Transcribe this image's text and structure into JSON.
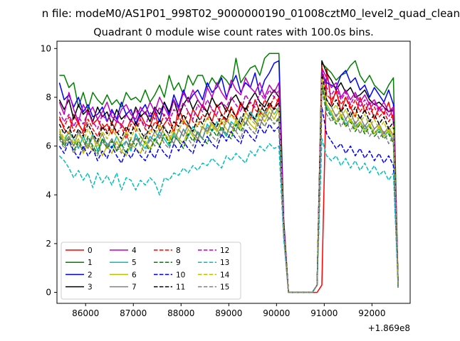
{
  "suptitle": "n file: modeM0/AS1P01_998T02_9000000190_01008cztM0_level2_quad_clean",
  "chart_data": {
    "type": "line",
    "title": "Quadrant 0 module wise count rates with 100.0s bins.",
    "xlabel": "",
    "ylabel": "",
    "x_offset_label": "+1.869e8",
    "xlim": [
      85400,
      92800
    ],
    "ylim": [
      -0.45,
      10.3
    ],
    "xticks": [
      86000,
      87000,
      88000,
      89000,
      90000,
      91000,
      92000
    ],
    "yticks": [
      0,
      2,
      4,
      6,
      8,
      10
    ],
    "grid": false,
    "legend": {
      "position": "lower-left",
      "columns": 4
    },
    "x_start": 85450,
    "x_step": 100,
    "series": [
      {
        "name": "0",
        "color": "#ff0000",
        "dash": "solid",
        "values": [
          7.2,
          6.7,
          6.5,
          7.3,
          6.9,
          6.6,
          7.5,
          6.9,
          7.1,
          6.7,
          6.9,
          6.5,
          7.0,
          6.9,
          6.6,
          7.1,
          6.8,
          7.3,
          6.9,
          6.8,
          7.4,
          6.6,
          6.9,
          7.2,
          6.5,
          7.6,
          7.0,
          6.8,
          7.5,
          7.2,
          7.7,
          7.4,
          7.0,
          7.7,
          7.3,
          7.0,
          7.6,
          7.2,
          7.8,
          7.4,
          7.1,
          7.9,
          7.4,
          7.2,
          7.7,
          7.5,
          8.0,
          2.5,
          0,
          0,
          0,
          0,
          0,
          0,
          0,
          0.3,
          9.2,
          7.7,
          8.3,
          7.4,
          8.0,
          7.6,
          7.2,
          8.0,
          7.4,
          7.8,
          7.1,
          7.6,
          7.3,
          7.8,
          7.0,
          0.3
        ]
      },
      {
        "name": "1",
        "color": "#008000",
        "dash": "solid",
        "values": [
          8.9,
          8.9,
          8.4,
          8.6,
          7.6,
          8.2,
          7.5,
          8.2,
          7.9,
          7.7,
          8.1,
          7.7,
          7.9,
          7.6,
          8.2,
          7.9,
          8.0,
          7.8,
          8.3,
          7.8,
          8.1,
          8.5,
          8.0,
          8.9,
          8.3,
          8.6,
          8.1,
          8.9,
          8.5,
          8.9,
          8.9,
          8.4,
          8.8,
          8.5,
          8.9,
          8.7,
          8.4,
          9.6,
          8.6,
          8.9,
          9.2,
          9.3,
          8.9,
          9.6,
          9.8,
          9.8,
          9.8,
          3.0,
          0,
          0,
          0,
          0,
          0,
          0,
          0.3,
          9.4,
          9.2,
          9.0,
          8.7,
          8.9,
          9.0,
          9.3,
          9.5,
          8.9,
          8.6,
          8.9,
          8.5,
          8.3,
          8.1,
          8.5,
          8.8,
          0.2
        ]
      },
      {
        "name": "2",
        "color": "#0000ff",
        "dash": "solid",
        "values": [
          8.6,
          7.9,
          8.1,
          7.6,
          8.0,
          7.4,
          7.7,
          7.2,
          7.3,
          7.6,
          7.0,
          7.5,
          7.1,
          7.8,
          7.3,
          7.5,
          6.9,
          7.4,
          7.7,
          7.2,
          7.5,
          7.0,
          7.8,
          7.3,
          8.1,
          7.6,
          8.3,
          7.8,
          8.1,
          8.3,
          7.9,
          8.6,
          8.2,
          8.4,
          8.8,
          8.0,
          8.5,
          8.9,
          8.2,
          8.6,
          8.4,
          9.0,
          8.1,
          8.7,
          9.0,
          9.4,
          9.5,
          3.0,
          0,
          0,
          0,
          0,
          0,
          0,
          0.3,
          9.0,
          8.6,
          8.5,
          8.4,
          8.9,
          9.1,
          8.6,
          8.8,
          8.3,
          8.5,
          8.0,
          8.4,
          8.1,
          7.8,
          8.3,
          7.7,
          0.2
        ]
      },
      {
        "name": "3",
        "color": "#000000",
        "dash": "solid",
        "values": [
          7.9,
          7.5,
          7.9,
          7.1,
          7.7,
          7.3,
          7.5,
          7.0,
          7.6,
          7.2,
          7.4,
          6.9,
          7.5,
          7.1,
          7.3,
          7.0,
          7.6,
          7.2,
          7.4,
          7.0,
          7.6,
          7.3,
          7.8,
          7.4,
          7.9,
          7.2,
          7.7,
          8.0,
          7.5,
          7.9,
          7.6,
          7.4,
          8.0,
          7.6,
          7.8,
          7.4,
          7.9,
          8.1,
          7.7,
          7.5,
          7.9,
          8.2,
          7.8,
          7.6,
          8.0,
          8.3,
          8.0,
          2.8,
          0,
          0,
          0,
          0,
          0,
          0,
          0.3,
          9.5,
          9.0,
          8.7,
          8.3,
          8.6,
          8.2,
          8.4,
          8.0,
          8.1,
          8.3,
          7.9,
          7.7,
          7.8,
          7.6,
          7.4,
          7.5,
          0.3
        ]
      },
      {
        "name": "4",
        "color": "#bf00bf",
        "dash": "solid",
        "values": [
          7.8,
          7.3,
          8.2,
          7.5,
          7.0,
          7.7,
          7.3,
          7.6,
          7.1,
          7.4,
          7.8,
          7.2,
          7.0,
          7.5,
          7.7,
          7.3,
          7.1,
          7.6,
          7.3,
          7.8,
          7.4,
          8.0,
          7.6,
          7.2,
          7.9,
          7.5,
          8.2,
          7.8,
          8.3,
          7.9,
          7.6,
          8.4,
          8.0,
          8.6,
          8.2,
          7.9,
          8.7,
          8.3,
          8.1,
          8.8,
          8.4,
          8.2,
          8.6,
          8.0,
          8.5,
          8.2,
          8.6,
          2.9,
          0,
          0,
          0,
          0,
          0,
          0,
          0.3,
          9.2,
          8.8,
          8.4,
          8.6,
          8.0,
          8.3,
          7.9,
          8.2,
          7.8,
          8.1,
          7.7,
          7.9,
          7.5,
          7.8,
          7.4,
          7.6,
          0.2
        ]
      },
      {
        "name": "5",
        "color": "#00bfbf",
        "dash": "solid",
        "values": [
          6.6,
          6.2,
          6.6,
          6.3,
          5.9,
          6.4,
          6.0,
          6.5,
          5.8,
          6.3,
          6.1,
          5.9,
          6.4,
          6.0,
          6.2,
          5.8,
          6.5,
          6.1,
          5.9,
          6.4,
          6.2,
          6.6,
          6.3,
          6.0,
          6.5,
          6.2,
          6.7,
          6.4,
          6.8,
          6.5,
          6.3,
          6.9,
          6.6,
          7.0,
          6.7,
          6.4,
          7.0,
          6.8,
          7.2,
          6.9,
          7.4,
          7.1,
          7.5,
          7.2,
          7.6,
          7.3,
          7.6,
          2.6,
          0,
          0,
          0,
          0,
          0,
          0,
          0.3,
          8.6,
          7.6,
          7.3,
          7.0,
          7.3,
          6.9,
          7.1,
          6.8,
          7.0,
          6.7,
          6.9,
          6.5,
          6.7,
          6.4,
          6.6,
          6.2,
          0.2
        ]
      },
      {
        "name": "6",
        "color": "#bfbf00",
        "dash": "solid",
        "values": [
          6.6,
          6.2,
          6.4,
          6.0,
          6.3,
          5.7,
          6.1,
          5.8,
          6.2,
          5.6,
          6.0,
          5.7,
          6.2,
          5.8,
          5.6,
          6.1,
          5.9,
          5.7,
          6.2,
          5.9,
          6.3,
          6.0,
          6.5,
          6.2,
          6.6,
          6.3,
          6.1,
          6.7,
          6.4,
          6.2,
          6.8,
          6.5,
          6.9,
          6.6,
          7.0,
          6.7,
          6.5,
          7.1,
          6.8,
          7.2,
          6.9,
          6.7,
          7.3,
          7.0,
          7.4,
          7.1,
          7.5,
          2.6,
          0,
          0,
          0,
          0,
          0,
          0,
          0.3,
          8.4,
          7.7,
          7.4,
          7.0,
          7.3,
          6.8,
          7.1,
          6.7,
          7.0,
          6.6,
          6.9,
          6.5,
          6.8,
          6.4,
          6.7,
          6.2,
          0.2
        ]
      },
      {
        "name": "7",
        "color": "#808080",
        "dash": "solid",
        "values": [
          6.5,
          6.1,
          6.4,
          6.0,
          6.6,
          6.2,
          5.9,
          6.4,
          6.1,
          6.5,
          6.0,
          6.3,
          5.8,
          6.2,
          6.5,
          6.0,
          6.3,
          6.1,
          6.5,
          6.2,
          6.6,
          6.3,
          6.8,
          6.4,
          6.1,
          6.7,
          6.4,
          6.9,
          6.5,
          6.3,
          6.8,
          6.6,
          7.0,
          6.7,
          6.4,
          7.1,
          6.8,
          6.6,
          7.2,
          6.9,
          7.3,
          7.0,
          6.8,
          7.4,
          7.1,
          7.6,
          7.4,
          2.6,
          0,
          0,
          0,
          0,
          0,
          0,
          0.3,
          8.7,
          7.9,
          7.6,
          7.2,
          7.5,
          7.1,
          7.4,
          6.9,
          7.2,
          6.8,
          7.1,
          6.7,
          6.9,
          6.5,
          6.8,
          6.4,
          0.2
        ]
      },
      {
        "name": "8",
        "color": "#ff0000",
        "dash": "dashed",
        "values": [
          7.1,
          6.8,
          7.2,
          6.6,
          7.0,
          6.5,
          7.1,
          6.7,
          6.4,
          6.9,
          6.6,
          7.0,
          6.5,
          6.8,
          6.3,
          6.9,
          6.6,
          7.1,
          6.7,
          6.5,
          7.0,
          6.8,
          7.3,
          6.9,
          6.6,
          7.2,
          6.9,
          7.4,
          7.0,
          6.8,
          7.3,
          7.1,
          7.5,
          7.2,
          6.9,
          7.6,
          7.3,
          7.1,
          7.7,
          7.4,
          7.8,
          7.5,
          7.3,
          7.9,
          7.6,
          8.0,
          7.8,
          2.7,
          0,
          0,
          0,
          0,
          0,
          0,
          0.3,
          9.3,
          8.1,
          7.9,
          8.2,
          7.7,
          8.0,
          7.5,
          7.9,
          7.4,
          7.7,
          7.3,
          7.6,
          7.2,
          7.4,
          7.0,
          7.3,
          0.2
        ]
      },
      {
        "name": "9",
        "color": "#008000",
        "dash": "dashed",
        "values": [
          6.4,
          6.0,
          6.3,
          5.8,
          6.2,
          5.9,
          6.4,
          6.0,
          5.7,
          6.3,
          5.9,
          6.2,
          5.8,
          6.1,
          5.7,
          6.3,
          6.0,
          6.4,
          6.1,
          5.8,
          6.3,
          6.0,
          6.5,
          6.1,
          6.4,
          6.2,
          5.9,
          6.5,
          6.2,
          6.6,
          6.3,
          6.1,
          6.7,
          6.4,
          6.8,
          6.5,
          6.3,
          6.9,
          6.6,
          7.0,
          6.7,
          6.5,
          7.1,
          6.8,
          7.2,
          6.9,
          7.1,
          2.5,
          0,
          0,
          0,
          0,
          0,
          0,
          0.3,
          8.5,
          7.5,
          7.2,
          6.9,
          7.2,
          6.8,
          7.0,
          6.6,
          6.9,
          6.5,
          6.8,
          6.4,
          6.6,
          6.3,
          6.5,
          6.1,
          0.2
        ]
      },
      {
        "name": "10",
        "color": "#0000ff",
        "dash": "dashed",
        "values": [
          6.0,
          5.7,
          6.2,
          5.8,
          5.5,
          6.0,
          5.6,
          5.9,
          5.4,
          5.8,
          5.5,
          6.0,
          5.6,
          5.3,
          5.8,
          5.5,
          5.9,
          5.6,
          5.4,
          5.8,
          5.5,
          6.0,
          5.7,
          5.5,
          6.1,
          5.8,
          6.2,
          5.9,
          5.7,
          6.3,
          6.0,
          6.4,
          6.1,
          5.9,
          6.5,
          6.2,
          6.6,
          6.3,
          6.1,
          6.7,
          6.4,
          6.2,
          6.8,
          6.5,
          6.9,
          6.6,
          6.8,
          2.4,
          0,
          0,
          0,
          0,
          0,
          0,
          0.3,
          7.6,
          6.5,
          6.2,
          5.9,
          6.1,
          5.7,
          6.0,
          5.6,
          5.9,
          5.5,
          5.8,
          5.4,
          5.7,
          5.3,
          5.6,
          5.2,
          0.2
        ]
      },
      {
        "name": "11",
        "color": "#000000",
        "dash": "dashed",
        "values": [
          6.9,
          6.5,
          6.8,
          6.3,
          6.7,
          6.4,
          6.9,
          6.5,
          6.2,
          6.8,
          6.5,
          6.9,
          6.6,
          6.3,
          6.8,
          6.5,
          7.0,
          6.6,
          6.3,
          6.9,
          6.6,
          7.1,
          6.7,
          6.5,
          7.0,
          6.8,
          7.3,
          6.9,
          6.6,
          7.2,
          6.9,
          7.4,
          7.0,
          6.8,
          7.3,
          7.1,
          7.5,
          7.2,
          6.9,
          7.6,
          7.3,
          7.1,
          7.7,
          7.4,
          7.8,
          7.5,
          7.8,
          2.7,
          0,
          0,
          0,
          0,
          0,
          0,
          0.3,
          9.0,
          7.9,
          7.6,
          7.9,
          7.4,
          7.7,
          7.2,
          7.6,
          7.1,
          7.5,
          7.0,
          7.3,
          6.9,
          7.2,
          6.7,
          7.0,
          0.2
        ]
      },
      {
        "name": "12",
        "color": "#bf00bf",
        "dash": "dashed",
        "values": [
          7.4,
          7.0,
          7.3,
          6.8,
          7.2,
          6.9,
          7.4,
          7.0,
          6.7,
          7.3,
          7.0,
          7.4,
          7.1,
          6.8,
          7.3,
          7.0,
          7.5,
          7.1,
          6.8,
          7.4,
          7.1,
          7.6,
          7.2,
          7.0,
          7.5,
          7.3,
          7.8,
          7.4,
          7.1,
          7.7,
          7.4,
          7.9,
          7.5,
          7.3,
          7.8,
          7.6,
          8.0,
          7.7,
          7.4,
          8.1,
          7.8,
          7.6,
          8.2,
          7.9,
          8.3,
          8.0,
          8.3,
          2.8,
          0,
          0,
          0,
          0,
          0,
          0,
          0.3,
          9.1,
          8.4,
          8.1,
          8.4,
          7.9,
          8.2,
          7.7,
          8.1,
          7.6,
          7.9,
          7.5,
          7.8,
          7.4,
          7.6,
          7.2,
          7.5,
          0.2
        ]
      },
      {
        "name": "13",
        "color": "#00bfbf",
        "dash": "dashed",
        "values": [
          5.6,
          5.4,
          5.1,
          4.7,
          5.0,
          4.6,
          4.9,
          4.3,
          4.9,
          4.5,
          4.8,
          4.4,
          4.9,
          4.2,
          4.7,
          4.6,
          4.2,
          4.6,
          4.4,
          4.7,
          4.5,
          4.0,
          4.7,
          4.6,
          4.9,
          4.8,
          5.1,
          4.9,
          5.2,
          5.0,
          5.3,
          5.2,
          5.5,
          5.3,
          5.1,
          5.6,
          5.4,
          5.7,
          5.5,
          5.3,
          5.8,
          5.6,
          6.0,
          5.8,
          6.1,
          5.9,
          6.0,
          2.2,
          0,
          0,
          0,
          0,
          0,
          0,
          0.3,
          6.3,
          5.6,
          5.4,
          5.6,
          5.2,
          5.5,
          5.1,
          5.4,
          5.0,
          5.3,
          4.9,
          5.2,
          4.8,
          5.0,
          4.6,
          4.9,
          0.2
        ]
      },
      {
        "name": "14",
        "color": "#bfbf00",
        "dash": "dashed",
        "values": [
          6.7,
          6.3,
          6.6,
          6.1,
          6.5,
          6.2,
          6.7,
          6.3,
          6.0,
          6.6,
          6.3,
          6.7,
          6.4,
          6.1,
          6.6,
          6.3,
          6.8,
          6.4,
          6.1,
          6.7,
          6.4,
          6.9,
          6.5,
          6.3,
          6.8,
          6.6,
          7.1,
          6.7,
          6.4,
          7.0,
          6.7,
          7.2,
          6.8,
          6.6,
          7.1,
          6.9,
          7.3,
          7.0,
          6.7,
          7.4,
          7.1,
          6.9,
          7.5,
          7.2,
          7.6,
          7.3,
          7.6,
          2.6,
          0,
          0,
          0,
          0,
          0,
          0,
          0.3,
          8.8,
          7.7,
          7.4,
          7.7,
          7.2,
          7.5,
          7.0,
          7.4,
          6.9,
          7.3,
          6.8,
          7.1,
          6.7,
          7.0,
          6.5,
          6.8,
          0.2
        ]
      },
      {
        "name": "15",
        "color": "#808080",
        "dash": "dashed",
        "values": [
          6.3,
          5.9,
          6.2,
          5.7,
          6.1,
          5.8,
          6.3,
          5.9,
          5.6,
          6.2,
          5.9,
          6.3,
          6.0,
          5.7,
          6.2,
          5.9,
          6.4,
          6.0,
          5.7,
          6.3,
          6.0,
          6.5,
          6.1,
          5.9,
          6.4,
          6.2,
          6.7,
          6.3,
          6.0,
          6.6,
          6.3,
          6.8,
          6.4,
          6.2,
          6.7,
          6.5,
          6.9,
          6.6,
          6.3,
          7.0,
          6.7,
          6.5,
          7.1,
          6.8,
          7.2,
          6.9,
          7.2,
          2.5,
          0,
          0,
          0,
          0,
          0,
          0,
          0.3,
          8.3,
          7.3,
          7.0,
          7.3,
          6.8,
          7.1,
          6.6,
          7.0,
          6.5,
          6.9,
          6.4,
          6.7,
          6.3,
          6.6,
          6.1,
          6.4,
          0.2
        ]
      }
    ]
  }
}
